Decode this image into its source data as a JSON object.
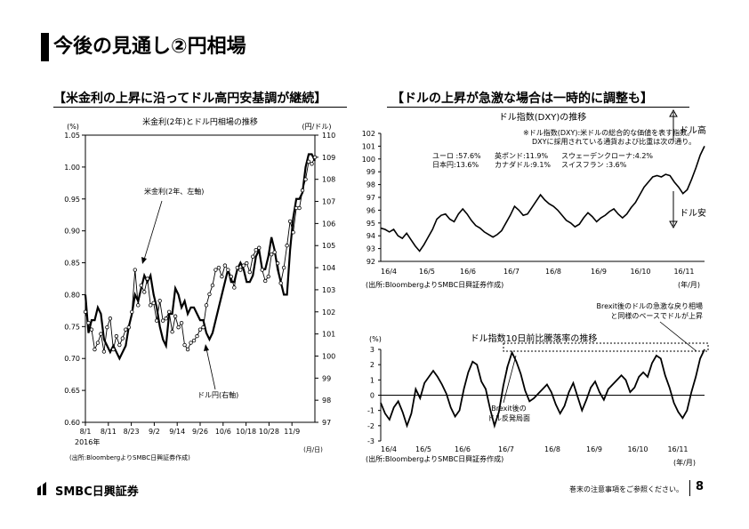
{
  "page": {
    "title": "今後の見通し②円相場",
    "left_heading": "【米金利の上昇に沿ってドル高円安基調が継続】",
    "right_heading": "【ドルの上昇が急激な場合は一時的に調整も】",
    "brand": "SMBC日興証券",
    "footer_note": "巻末の注意事項をご参照ください。",
    "page_number": "8"
  },
  "chart_data": [
    {
      "id": "left",
      "type": "line",
      "title": "米金利(2年)とドル円相場の推移",
      "y_left_unit": "(%)",
      "y_right_unit": "(円/ドル)",
      "x_unit": "(月/日)",
      "year_label": "2016年",
      "source": "(出所:BloombergよりSMBC日興証券作成)",
      "ylim_left": [
        0.6,
        1.05
      ],
      "ylim_right": [
        97,
        110
      ],
      "y_left_ticks": [
        "0.60",
        "0.65",
        "0.70",
        "0.75",
        "0.80",
        "0.85",
        "0.90",
        "0.95",
        "1.00",
        "1.05"
      ],
      "y_right_ticks": [
        "97",
        "98",
        "99",
        "100",
        "101",
        "102",
        "103",
        "104",
        "105",
        "106",
        "107",
        "108",
        "109",
        "110"
      ],
      "x_ticks": [
        "8/1",
        "8/11",
        "8/23",
        "9/2",
        "9/14",
        "9/26",
        "10/6",
        "10/18",
        "10/28",
        "11/9"
      ],
      "annotations": [
        "米金利(2年、左軸)",
        "ドル円(右軸)"
      ],
      "series": [
        {
          "name": "米金利(2年、左軸)",
          "axis": "left",
          "values": [
            0.8,
            0.74,
            0.76,
            0.76,
            0.78,
            0.77,
            0.73,
            0.72,
            0.71,
            0.72,
            0.71,
            0.7,
            0.71,
            0.72,
            0.75,
            0.77,
            0.8,
            0.79,
            0.81,
            0.83,
            0.82,
            0.83,
            0.8,
            0.78,
            0.75,
            0.73,
            0.72,
            0.77,
            0.77,
            0.81,
            0.8,
            0.78,
            0.79,
            0.77,
            0.78,
            0.78,
            0.77,
            0.76,
            0.76,
            0.74,
            0.73,
            0.74,
            0.76,
            0.78,
            0.8,
            0.82,
            0.84,
            0.82,
            0.82,
            0.84,
            0.85,
            0.84,
            0.82,
            0.82,
            0.83,
            0.86,
            0.87,
            0.84,
            0.84,
            0.86,
            0.89,
            0.87,
            0.84,
            0.82,
            0.8,
            0.8,
            0.87,
            0.92,
            0.95,
            0.95,
            0.96,
            1.0,
            1.02,
            1.02,
            1.01
          ]
        },
        {
          "name": "ドル円(右軸)",
          "axis": "right",
          "values": [
            102.0,
            101.5,
            101.2,
            100.3,
            100.6,
            101.0,
            100.2,
            101.3,
            101.7,
            100.3,
            100.9,
            100.5,
            100.8,
            101.2,
            101.3,
            102.0,
            103.9,
            102.3,
            103.2,
            102.9,
            103.5,
            102.3,
            102.4,
            101.6,
            102.5,
            101.6,
            101.7,
            102.0,
            101.1,
            101.8,
            101.3,
            101.5,
            100.5,
            100.3,
            100.6,
            100.7,
            100.9,
            101.2,
            101.3,
            102.3,
            102.8,
            103.2,
            103.9,
            104.0,
            103.6,
            104.1,
            103.9,
            103.6,
            103.1,
            104.0,
            103.9,
            104.1,
            104.2,
            103.8,
            104.5,
            104.8,
            104.9,
            103.9,
            103.4,
            103.6,
            104.6,
            104.7,
            104.2,
            103.3,
            104.0,
            105.0,
            106.1,
            105.6,
            106.7,
            106.7,
            107.5,
            108.0,
            108.8,
            108.7,
            109.0
          ]
        }
      ]
    },
    {
      "id": "right-top",
      "type": "line",
      "title": "ドル指数(DXY)の推移",
      "note_lines": [
        "※ドル指数(DXY):米ドルの総合的な価値を表す指数。",
        "DXYに採用されている通貨および比重は次の通り。"
      ],
      "weights": [
        [
          "ユーロ :57.6%",
          "英ポンド:11.9%",
          "スウェーデンクローナ:4.2%"
        ],
        [
          "日本円:13.6%",
          "カナダドル:9.1%",
          "スイスフラン        :3.6%"
        ]
      ],
      "arrow_up_label": "ドル高",
      "arrow_down_label": "ドル安",
      "source": "(出所:BloombergよりSMBC日興証券作成)",
      "x_unit": "(年/月)",
      "ylim": [
        92,
        102
      ],
      "y_ticks": [
        "92",
        "93",
        "94",
        "95",
        "96",
        "97",
        "98",
        "99",
        "100",
        "101",
        "102"
      ],
      "x_ticks": [
        "16/4",
        "16/5",
        "16/6",
        "16/7",
        "16/8",
        "16/9",
        "16/10",
        "16/11"
      ],
      "series": [
        {
          "name": "DXY",
          "values": [
            94.6,
            94.5,
            94.3,
            94.5,
            94.0,
            93.8,
            94.2,
            93.7,
            93.2,
            92.8,
            93.3,
            93.9,
            94.5,
            95.3,
            95.6,
            95.7,
            95.3,
            95.1,
            95.7,
            96.1,
            95.7,
            95.2,
            94.8,
            94.6,
            94.3,
            94.1,
            93.9,
            94.1,
            94.4,
            95.0,
            95.6,
            96.3,
            96.0,
            95.6,
            95.7,
            96.2,
            96.7,
            97.2,
            96.8,
            96.5,
            96.3,
            96.0,
            95.6,
            95.2,
            95.0,
            94.7,
            94.9,
            95.4,
            95.8,
            95.5,
            95.1,
            95.4,
            95.6,
            95.9,
            96.1,
            95.7,
            95.4,
            95.7,
            96.2,
            96.6,
            97.2,
            97.8,
            98.2,
            98.6,
            98.7,
            98.6,
            98.8,
            98.7,
            98.2,
            97.8,
            97.3,
            97.6,
            98.4,
            99.3,
            100.3,
            101.0
          ]
        }
      ]
    },
    {
      "id": "right-bottom",
      "type": "line",
      "title": "ドル指数10日前比騰落率の推移",
      "y_unit": "(%)",
      "annotations": [
        "Brexit後の\nドル反発局面",
        "Brexit後のドルの急激な戻り相場\nと同様のペースでドルが上昇"
      ],
      "source": "(出所:BloombergよりSMBC日興証券作成)",
      "x_unit": "(年/月)",
      "ylim": [
        -3,
        3
      ],
      "y_ticks": [
        "-3",
        "-2",
        "-1",
        "0",
        "1",
        "2",
        "3"
      ],
      "x_ticks": [
        "16/4",
        "16/5",
        "16/6",
        "16/7",
        "16/8",
        "16/9",
        "16/10",
        "16/11"
      ],
      "series": [
        {
          "name": "10日前比騰落率",
          "values": [
            -0.5,
            -1.2,
            -1.6,
            -0.8,
            -0.4,
            -1.1,
            -2.0,
            -1.2,
            0.4,
            -0.2,
            0.8,
            1.2,
            1.6,
            1.2,
            0.7,
            0.1,
            -0.8,
            -1.4,
            -1.0,
            0.4,
            1.5,
            2.2,
            2.0,
            0.9,
            0.4,
            -0.9,
            -2.0,
            -1.1,
            0.6,
            1.9,
            2.8,
            2.2,
            1.4,
            0.3,
            -0.4,
            -0.2,
            0.1,
            0.4,
            0.7,
            0.2,
            -0.6,
            -1.2,
            -0.7,
            0.2,
            0.8,
            -0.1,
            -1.0,
            -0.3,
            0.5,
            0.9,
            0.2,
            -0.3,
            0.4,
            0.7,
            1.0,
            1.3,
            1.0,
            0.2,
            0.5,
            1.2,
            1.5,
            1.2,
            2.1,
            2.6,
            2.4,
            1.3,
            0.5,
            -0.5,
            -1.1,
            -1.5,
            -1.0,
            0.2,
            1.2,
            2.4,
            3.0
          ]
        }
      ]
    }
  ]
}
